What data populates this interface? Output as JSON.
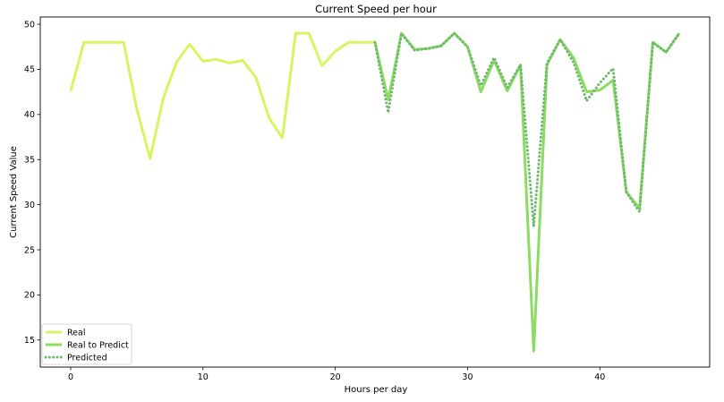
{
  "chart_data": {
    "type": "line",
    "title": "Current Speed per hour",
    "xlabel": "Hours per day",
    "ylabel": "Current Speed Value",
    "xlim": [
      -2.3,
      48.3
    ],
    "ylim": [
      12,
      50.8
    ],
    "xticks": [
      0,
      10,
      20,
      30,
      40
    ],
    "yticks": [
      15,
      20,
      25,
      30,
      35,
      40,
      45,
      50
    ],
    "grid": false,
    "legend": "lower-left",
    "series": [
      {
        "name": "Real",
        "color": "#d4f564",
        "style": "solid",
        "x": [
          0,
          1,
          2,
          3,
          4,
          5,
          6,
          7,
          8,
          9,
          10,
          11,
          12,
          13,
          14,
          15,
          16,
          17,
          18,
          19,
          20,
          21,
          22,
          23
        ],
        "values": [
          42.6,
          48.0,
          48.0,
          48.0,
          48.0,
          40.6,
          35.1,
          41.8,
          45.8,
          47.8,
          45.9,
          46.1,
          45.7,
          46.0,
          44.1,
          39.6,
          37.4,
          49.0,
          49.0,
          45.4,
          47.0,
          48.0,
          48.0,
          48.0
        ]
      },
      {
        "name": "Real to Predict",
        "color": "#8cdb64",
        "style": "solid",
        "x": [
          23,
          24,
          25,
          26,
          27,
          28,
          29,
          30,
          31,
          32,
          33,
          34,
          35,
          36,
          37,
          38,
          39,
          40,
          41,
          42,
          43,
          44,
          45,
          46
        ],
        "values": [
          48.0,
          41.6,
          49.0,
          47.2,
          47.3,
          47.6,
          49.0,
          47.5,
          42.5,
          46.0,
          42.6,
          45.5,
          13.8,
          45.5,
          48.3,
          46.3,
          42.5,
          42.7,
          43.8,
          31.4,
          29.6,
          48.0,
          46.9,
          49.0
        ]
      },
      {
        "name": "Predicted",
        "color": "#6fb86f",
        "style": "dotted",
        "x": [
          23,
          24,
          25,
          26,
          27,
          28,
          29,
          30,
          31,
          32,
          33,
          34,
          35,
          36,
          37,
          38,
          39,
          40,
          41,
          42,
          43,
          44,
          45,
          46
        ],
        "values": [
          48.0,
          40.2,
          49.0,
          47.1,
          47.3,
          47.6,
          49.0,
          47.5,
          43.2,
          46.3,
          43.0,
          45.5,
          27.6,
          45.7,
          48.3,
          45.8,
          41.5,
          43.5,
          45.1,
          31.4,
          29.2,
          48.0,
          46.9,
          49.0
        ]
      }
    ]
  }
}
